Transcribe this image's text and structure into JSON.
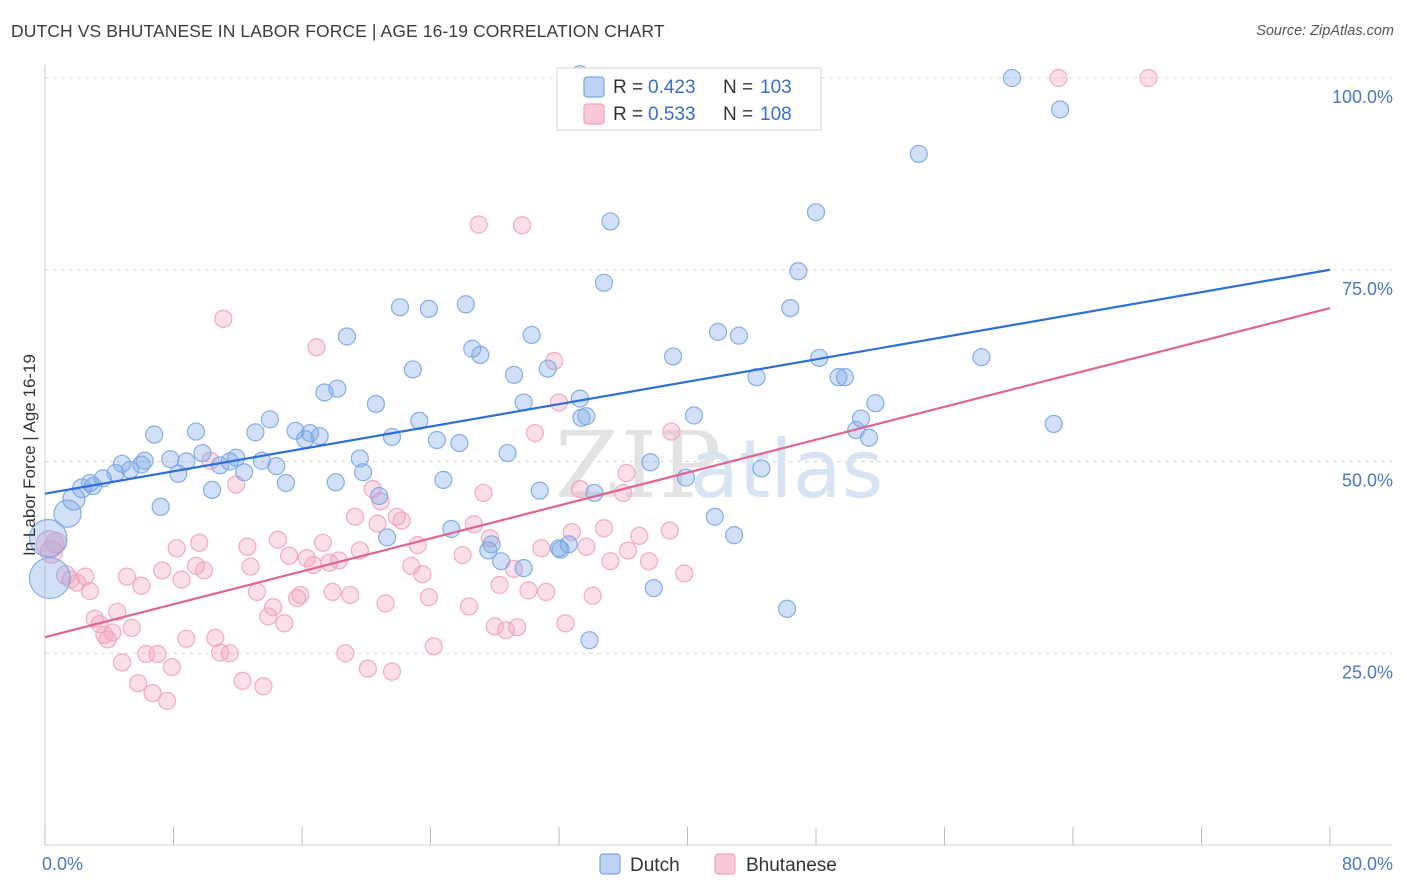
{
  "title": "DUTCH VS BHUTANESE IN LABOR FORCE | AGE 16-19 CORRELATION CHART",
  "source": "Source: ZipAtlas.com",
  "watermark": {
    "zip": "ZIP",
    "atlas": "atlas"
  },
  "colors": {
    "dutch": "#7aa6e6",
    "dutch_line": "#2d6fd6",
    "bhutanese": "#f2a3bd",
    "bhutanese_line": "#e0648f",
    "grid": "#d9d9d9",
    "tick_text": "#4a78c2"
  },
  "legend": {
    "r_label": "R =",
    "n_label": "N =",
    "rows": [
      {
        "name": "Dutch",
        "r": "0.423",
        "n": "103"
      },
      {
        "name": "Bhutanese",
        "r": "0.533",
        "n": "108"
      }
    ]
  },
  "chart_data": {
    "type": "scatter",
    "title": "DUTCH VS BHUTANESE IN LABOR FORCE | AGE 16-19 CORRELATION CHART",
    "xlabel": "",
    "ylabel": "In Labor Force | Age 16-19",
    "xlim": [
      0,
      80
    ],
    "ylim": [
      0,
      102
    ],
    "x_tick_labels": [
      {
        "value": 0,
        "label": "0.0%"
      },
      {
        "value": 80,
        "label": "80.0%"
      }
    ],
    "y_tick_labels": [
      {
        "value": 25,
        "label": "25.0%"
      },
      {
        "value": 50,
        "label": "50.0%"
      },
      {
        "value": 75,
        "label": "75.0%"
      },
      {
        "value": 100,
        "label": "100.0%"
      }
    ],
    "grid": true,
    "legend_position": "top-center",
    "series": [
      {
        "name": "Dutch",
        "trend": {
          "x": [
            0,
            80
          ],
          "y": [
            45.8,
            75.0
          ]
        },
        "points": [
          [
            0.2,
            40.0,
            2.2
          ],
          [
            0.3,
            34.8,
            2.4
          ],
          [
            1.4,
            43.2,
            1.6
          ],
          [
            1.8,
            45.1,
            1.3
          ],
          [
            2.3,
            46.5,
            1.1
          ],
          [
            2.8,
            47.2,
            1.0
          ],
          [
            3.0,
            46.8,
            1.0
          ],
          [
            3.6,
            47.8,
            1.0
          ],
          [
            4.4,
            48.5,
            1.0
          ],
          [
            4.8,
            49.7,
            1.0
          ],
          [
            5.3,
            48.9,
            1.0
          ],
          [
            6.2,
            50.1,
            1.0
          ],
          [
            6.0,
            49.6,
            1.0
          ],
          [
            6.8,
            53.5,
            1.0
          ],
          [
            7.2,
            44.1,
            1.0
          ],
          [
            7.8,
            50.3,
            1.0
          ],
          [
            8.3,
            48.4,
            1.0
          ],
          [
            8.8,
            50.0,
            1.0
          ],
          [
            9.4,
            53.9,
            1.0
          ],
          [
            9.8,
            51.1,
            1.0
          ],
          [
            10.4,
            46.3,
            1.0
          ],
          [
            10.9,
            49.5,
            1.0
          ],
          [
            11.5,
            50.0,
            1.0
          ],
          [
            11.9,
            50.5,
            1.0
          ],
          [
            12.4,
            48.6,
            1.0
          ],
          [
            13.1,
            53.8,
            1.0
          ],
          [
            13.5,
            50.1,
            1.0
          ],
          [
            14.0,
            55.5,
            1.0
          ],
          [
            14.4,
            49.4,
            1.0
          ],
          [
            15.0,
            47.2,
            1.0
          ],
          [
            15.6,
            54.0,
            1.0
          ],
          [
            16.2,
            52.9,
            1.0
          ],
          [
            16.5,
            53.7,
            1.0
          ],
          [
            17.1,
            53.3,
            1.0
          ],
          [
            17.4,
            59.0,
            1.0
          ],
          [
            18.2,
            59.5,
            1.0
          ],
          [
            18.1,
            47.3,
            1.0
          ],
          [
            18.8,
            66.3,
            1.0
          ],
          [
            19.6,
            50.4,
            1.0
          ],
          [
            19.8,
            48.6,
            1.0
          ],
          [
            20.6,
            57.5,
            1.0
          ],
          [
            20.8,
            45.5,
            1.0
          ],
          [
            21.6,
            53.2,
            1.0
          ],
          [
            22.1,
            70.1,
            1.0
          ],
          [
            22.9,
            62.0,
            1.0
          ],
          [
            23.3,
            55.3,
            1.0
          ],
          [
            23.9,
            69.9,
            1.0
          ],
          [
            24.4,
            52.8,
            1.0
          ],
          [
            24.8,
            47.6,
            1.0
          ],
          [
            25.3,
            41.2,
            1.0
          ],
          [
            25.8,
            52.4,
            1.0
          ],
          [
            26.2,
            70.5,
            1.0
          ],
          [
            26.6,
            64.7,
            1.0
          ],
          [
            27.1,
            63.9,
            1.0
          ],
          [
            27.6,
            38.4,
            1.0
          ],
          [
            27.8,
            39.2,
            1.0
          ],
          [
            28.4,
            37.0,
            1.0
          ],
          [
            28.8,
            51.1,
            1.0
          ],
          [
            29.2,
            61.3,
            1.0
          ],
          [
            29.8,
            57.7,
            1.0
          ],
          [
            30.3,
            66.5,
            1.0
          ],
          [
            30.8,
            46.2,
            1.0
          ],
          [
            31.3,
            62.1,
            1.0
          ],
          [
            32.1,
            38.5,
            1.0
          ],
          [
            32.6,
            39.2,
            1.0
          ],
          [
            33.4,
            55.7,
            1.0
          ],
          [
            33.3,
            58.2,
            1.0
          ],
          [
            33.7,
            55.9,
            1.0
          ],
          [
            34.2,
            45.9,
            1.0
          ],
          [
            34.8,
            73.3,
            1.0
          ],
          [
            35.2,
            81.3,
            1.0
          ],
          [
            37.9,
            33.5,
            1.0
          ],
          [
            37.7,
            49.9,
            1.0
          ],
          [
            39.9,
            47.9,
            1.0
          ],
          [
            39.1,
            63.7,
            1.0
          ],
          [
            40.4,
            56.0,
            1.0
          ],
          [
            41.7,
            42.8,
            1.0
          ],
          [
            41.9,
            66.9,
            1.0
          ],
          [
            42.9,
            40.4,
            1.0
          ],
          [
            43.2,
            66.4,
            1.0
          ],
          [
            44.3,
            61.0,
            1.0
          ],
          [
            44.6,
            49.1,
            1.0
          ],
          [
            46.2,
            30.8,
            1.0
          ],
          [
            46.4,
            70.0,
            1.0
          ],
          [
            46.9,
            74.8,
            1.0
          ],
          [
            48.0,
            82.5,
            1.0
          ],
          [
            48.2,
            63.5,
            1.0
          ],
          [
            49.4,
            61.0,
            1.0
          ],
          [
            49.8,
            61.0,
            1.0
          ],
          [
            50.5,
            54.1,
            1.0
          ],
          [
            50.8,
            55.6,
            1.0
          ],
          [
            51.3,
            53.1,
            1.0
          ],
          [
            51.7,
            57.6,
            1.0
          ],
          [
            54.4,
            90.1,
            1.0
          ],
          [
            58.3,
            63.6,
            1.0
          ],
          [
            60.2,
            100.0,
            1.0
          ],
          [
            62.8,
            54.9,
            1.0
          ],
          [
            63.2,
            95.9,
            1.0
          ],
          [
            33.3,
            100.5,
            1.0
          ],
          [
            33.9,
            26.7,
            1.0
          ],
          [
            32.0,
            38.7,
            1.0
          ],
          [
            29.8,
            36.1,
            1.0
          ],
          [
            21.3,
            40.1,
            1.0
          ]
        ]
      },
      {
        "name": "Bhutanese",
        "trend": {
          "x": [
            0,
            80
          ],
          "y": [
            27.1,
            70.0
          ]
        },
        "points": [
          [
            0.3,
            39.2,
            1.6
          ],
          [
            0.4,
            38.2,
            1.3
          ],
          [
            0.7,
            39.4,
            1.2
          ],
          [
            1.3,
            35.2,
            1.1
          ],
          [
            1.6,
            34.6,
            1.0
          ],
          [
            2.0,
            34.2,
            1.0
          ],
          [
            2.5,
            35.0,
            1.0
          ],
          [
            2.8,
            33.1,
            1.0
          ],
          [
            3.1,
            29.5,
            1.0
          ],
          [
            3.4,
            28.8,
            1.0
          ],
          [
            3.7,
            27.4,
            1.0
          ],
          [
            3.9,
            26.8,
            1.0
          ],
          [
            4.2,
            27.7,
            1.0
          ],
          [
            4.5,
            30.4,
            1.0
          ],
          [
            4.8,
            23.8,
            1.0
          ],
          [
            5.1,
            35.0,
            1.0
          ],
          [
            5.4,
            28.3,
            1.0
          ],
          [
            5.8,
            21.1,
            1.0
          ],
          [
            6.0,
            33.8,
            1.0
          ],
          [
            6.3,
            24.9,
            1.0
          ],
          [
            6.7,
            19.8,
            1.0
          ],
          [
            7.0,
            24.9,
            1.0
          ],
          [
            7.3,
            35.8,
            1.0
          ],
          [
            7.6,
            18.8,
            1.0
          ],
          [
            7.9,
            23.2,
            1.0
          ],
          [
            8.2,
            38.7,
            1.0
          ],
          [
            8.5,
            34.6,
            1.0
          ],
          [
            8.8,
            26.9,
            1.0
          ],
          [
            9.4,
            36.4,
            1.0
          ],
          [
            9.6,
            39.4,
            1.0
          ],
          [
            9.9,
            35.8,
            1.0
          ],
          [
            10.3,
            50.1,
            1.0
          ],
          [
            10.6,
            27.0,
            1.0
          ],
          [
            10.9,
            25.1,
            1.0
          ],
          [
            11.1,
            68.6,
            1.0
          ],
          [
            11.5,
            25.0,
            1.0
          ],
          [
            11.9,
            47.0,
            1.0
          ],
          [
            12.3,
            21.4,
            1.0
          ],
          [
            12.6,
            38.9,
            1.0
          ],
          [
            12.8,
            36.3,
            1.0
          ],
          [
            13.2,
            33.0,
            1.0
          ],
          [
            13.6,
            20.7,
            1.0
          ],
          [
            13.9,
            29.8,
            1.0
          ],
          [
            14.2,
            31.0,
            1.0
          ],
          [
            14.5,
            39.8,
            1.0
          ],
          [
            14.9,
            28.9,
            1.0
          ],
          [
            15.2,
            37.7,
            1.0
          ],
          [
            15.7,
            32.2,
            1.0
          ],
          [
            15.9,
            32.6,
            1.0
          ],
          [
            16.3,
            37.4,
            1.0
          ],
          [
            16.7,
            36.5,
            1.0
          ],
          [
            16.9,
            64.9,
            1.0
          ],
          [
            17.3,
            39.4,
            1.0
          ],
          [
            17.7,
            36.8,
            1.0
          ],
          [
            17.9,
            33.0,
            1.0
          ],
          [
            18.3,
            37.1,
            1.0
          ],
          [
            18.7,
            25.0,
            1.0
          ],
          [
            19.0,
            32.6,
            1.0
          ],
          [
            19.3,
            42.8,
            1.0
          ],
          [
            19.6,
            38.4,
            1.0
          ],
          [
            20.1,
            23.0,
            1.0
          ],
          [
            20.4,
            46.4,
            1.0
          ],
          [
            20.7,
            41.9,
            1.0
          ],
          [
            20.9,
            44.8,
            1.0
          ],
          [
            21.2,
            31.5,
            1.0
          ],
          [
            21.6,
            22.6,
            1.0
          ],
          [
            21.9,
            42.8,
            1.0
          ],
          [
            22.2,
            42.3,
            1.0
          ],
          [
            22.8,
            36.4,
            1.0
          ],
          [
            23.2,
            39.1,
            1.0
          ],
          [
            23.5,
            35.3,
            1.0
          ],
          [
            23.9,
            32.3,
            1.0
          ],
          [
            24.2,
            25.9,
            1.0
          ],
          [
            26.0,
            37.8,
            1.0
          ],
          [
            26.4,
            31.1,
            1.0
          ],
          [
            26.7,
            41.8,
            1.0
          ],
          [
            27.0,
            80.9,
            1.0
          ],
          [
            27.3,
            45.9,
            1.0
          ],
          [
            27.7,
            40.0,
            1.0
          ],
          [
            28.0,
            28.5,
            1.0
          ],
          [
            28.3,
            33.9,
            1.0
          ],
          [
            28.7,
            28.0,
            1.0
          ],
          [
            29.2,
            36.0,
            1.0
          ],
          [
            29.7,
            80.8,
            1.0
          ],
          [
            29.4,
            28.4,
            1.0
          ],
          [
            30.1,
            33.2,
            1.0
          ],
          [
            30.5,
            53.7,
            1.0
          ],
          [
            30.9,
            38.7,
            1.0
          ],
          [
            31.2,
            33.0,
            1.0
          ],
          [
            31.7,
            63.1,
            1.0
          ],
          [
            32.0,
            57.7,
            1.0
          ],
          [
            32.4,
            28.9,
            1.0
          ],
          [
            32.8,
            40.8,
            1.0
          ],
          [
            33.3,
            46.4,
            1.0
          ],
          [
            33.7,
            38.9,
            1.0
          ],
          [
            34.1,
            32.5,
            1.0
          ],
          [
            34.8,
            41.3,
            1.0
          ],
          [
            35.2,
            37.0,
            1.0
          ],
          [
            36.2,
            48.5,
            1.0
          ],
          [
            36.0,
            45.9,
            1.0
          ],
          [
            36.3,
            38.4,
            1.0
          ],
          [
            37.0,
            40.3,
            1.0
          ],
          [
            37.6,
            37.0,
            1.0
          ],
          [
            38.9,
            41.0,
            1.0
          ],
          [
            39.0,
            53.9,
            1.0
          ],
          [
            39.8,
            35.4,
            1.0
          ],
          [
            63.1,
            100.0,
            1.0
          ],
          [
            68.7,
            100.0,
            1.0
          ]
        ]
      }
    ]
  },
  "bottom_legend": [
    "Dutch",
    "Bhutanese"
  ]
}
